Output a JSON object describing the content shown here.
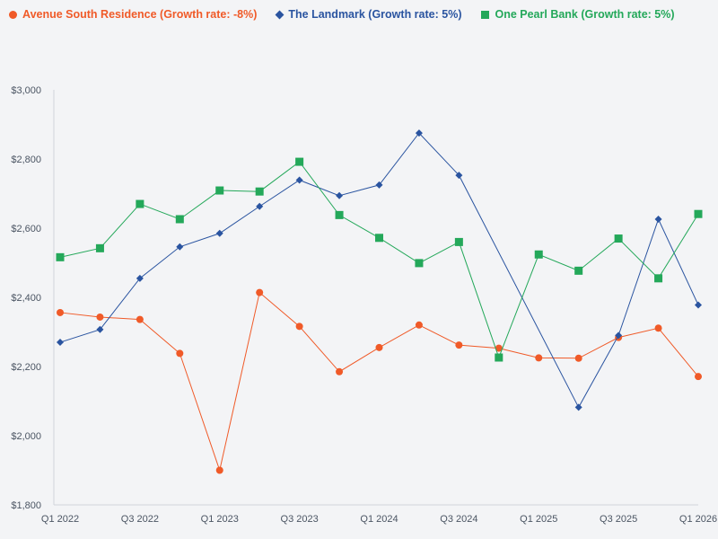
{
  "chart_data": {
    "type": "line",
    "title": "",
    "xlabel": "",
    "ylabel": "",
    "ylim": [
      1800,
      3000
    ],
    "yticks": [
      1800,
      2000,
      2200,
      2400,
      2600,
      2800,
      3000
    ],
    "ytick_labels": [
      "$1,800",
      "$2,000",
      "$2,200",
      "$2,400",
      "$2,600",
      "$2,800",
      "$3,000"
    ],
    "x": [
      "Q1 2022",
      "Q2 2022",
      "Q3 2022",
      "Q4 2022",
      "Q1 2023",
      "Q2 2023",
      "Q3 2023",
      "Q4 2023",
      "Q1 2024",
      "Q2 2024",
      "Q3 2024",
      "Q4 2024",
      "Q1 2025",
      "Q2 2025",
      "Q3 2025",
      "Q4 2025",
      "Q1 2026"
    ],
    "x_tick_labels": [
      "Q1 2022",
      "",
      "Q3 2022",
      "",
      "Q1 2023",
      "",
      "Q3 2023",
      "",
      "Q1 2024",
      "",
      "Q3 2024",
      "",
      "Q1 2025",
      "",
      "Q3 2025",
      "",
      "Q1 2026"
    ],
    "legend_position": "top-left",
    "series": [
      {
        "name": "Avenue South Residence (Growth rate: -8%)",
        "color": "#f05a28",
        "marker": "circle",
        "values": [
          2356,
          2343,
          2336,
          2238,
          1900,
          2414,
          2316,
          2185,
          2255,
          2320,
          2262,
          2253,
          2225,
          2224,
          2284,
          2311,
          2171
        ]
      },
      {
        "name": "The Landmark (Growth rate: 5%)",
        "color": "#2a54a0",
        "marker": "diamond",
        "values": [
          2270,
          2307,
          2455,
          2546,
          2585,
          2663,
          2739,
          2694,
          2725,
          2875,
          2753,
          null,
          null,
          2082,
          2290,
          2626,
          2378
        ]
      },
      {
        "name": "One Pearl Bank (Growth rate: 5%)",
        "color": "#24a85a",
        "marker": "square",
        "values": [
          2516,
          2542,
          2670,
          2626,
          2709,
          2706,
          2792,
          2638,
          2572,
          2499,
          2560,
          2226,
          2524,
          2477,
          2570,
          2455,
          2641
        ]
      }
    ]
  }
}
